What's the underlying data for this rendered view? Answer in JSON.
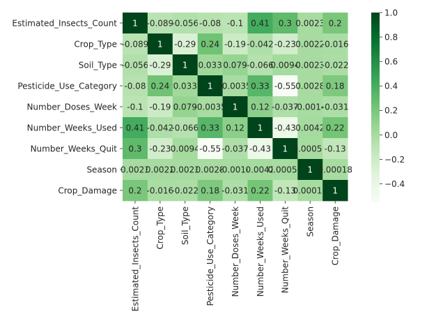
{
  "chart_data": {
    "type": "heatmap",
    "title": "",
    "xlabel": "",
    "ylabel": "",
    "labels": [
      "Estimated_Insects_Count",
      "Crop_Type",
      "Soil_Type",
      "Pesticide_Use_Category",
      "Number_Doses_Week",
      "Number_Weeks_Used",
      "Number_Weeks_Quit",
      "Season",
      "Crop_Damage"
    ],
    "value_labels": [
      [
        "1",
        "-0.089",
        "-0.056",
        "-0.08",
        "-0.1",
        "0.41",
        "0.3",
        "0.0023",
        "0.2"
      ],
      [
        "-0.089",
        "1",
        "-0.29",
        "0.24",
        "-0.19",
        "-0.042",
        "-0.23",
        "0.0022",
        "-0.016"
      ],
      [
        "-0.056",
        "-0.29",
        "1",
        "0.033",
        "0.079",
        "-0.066",
        "0.0094",
        "0.0023",
        "-0.022"
      ],
      [
        "-0.08",
        "0.24",
        "0.033",
        "1",
        "-0.0035",
        "0.33",
        "-0.55",
        "0.0028",
        "0.18"
      ],
      [
        "-0.1",
        "-0.19",
        "0.079",
        "-0.0035",
        "1",
        "0.12",
        "-0.037",
        "-0.0014",
        "-0.031"
      ],
      [
        "0.41",
        "-0.042",
        "-0.066",
        "0.33",
        "0.12",
        "1",
        "-0.43",
        "0.0042",
        "0.22"
      ],
      [
        "0.3",
        "-0.23",
        "0.0094",
        "-0.55",
        "-0.037",
        "-0.43",
        "1",
        "0.00059",
        "-0.13"
      ],
      [
        "0.0023",
        "0.0022",
        "0.0023",
        "0.0028",
        "-0.0014",
        "0.0042",
        "0.00059",
        "1",
        "0.00018"
      ],
      [
        "0.2",
        "-0.016",
        "-0.022",
        "0.18",
        "-0.031",
        "0.22",
        "-0.13",
        "0.00018",
        "1"
      ]
    ],
    "colormap": "Greens",
    "vmin": -0.55,
    "vmax": 1.0,
    "colorbar_ticks": [
      "1.0",
      "0.8",
      "0.6",
      "0.4",
      "0.2",
      "0.0",
      "−0.2",
      "−0.4"
    ],
    "colorbar_tick_values": [
      1.0,
      0.8,
      0.6,
      0.4,
      0.2,
      0.0,
      -0.2,
      -0.4
    ],
    "annotations": true,
    "grid": false
  }
}
